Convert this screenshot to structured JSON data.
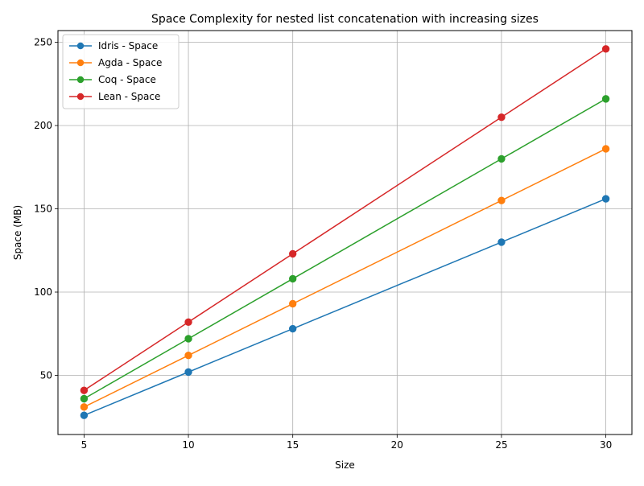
{
  "chart_data": {
    "type": "line",
    "title": "Space Complexity for nested list concatenation with increasing sizes",
    "xlabel": "Size",
    "ylabel": "Space (MB)",
    "x": [
      5,
      10,
      15,
      25,
      30
    ],
    "xlim": [
      3.75,
      31.25
    ],
    "ylim": [
      14.5,
      257.0
    ],
    "xticks": [
      5,
      10,
      15,
      20,
      25,
      30
    ],
    "yticks": [
      50,
      100,
      150,
      200,
      250
    ],
    "grid": true,
    "legend_position": "top-left",
    "marker": "circle",
    "series": [
      {
        "name": "Idris - Space",
        "color": "#1f77b4",
        "values": [
          26,
          52,
          78,
          130,
          156
        ]
      },
      {
        "name": "Agda - Space",
        "color": "#ff7f0e",
        "values": [
          31,
          62,
          93,
          155,
          186
        ]
      },
      {
        "name": "Coq - Space",
        "color": "#2ca02c",
        "values": [
          36,
          72,
          108,
          180,
          216
        ]
      },
      {
        "name": "Lean - Space",
        "color": "#d62728",
        "values": [
          41,
          82,
          123,
          205,
          246
        ]
      }
    ]
  }
}
